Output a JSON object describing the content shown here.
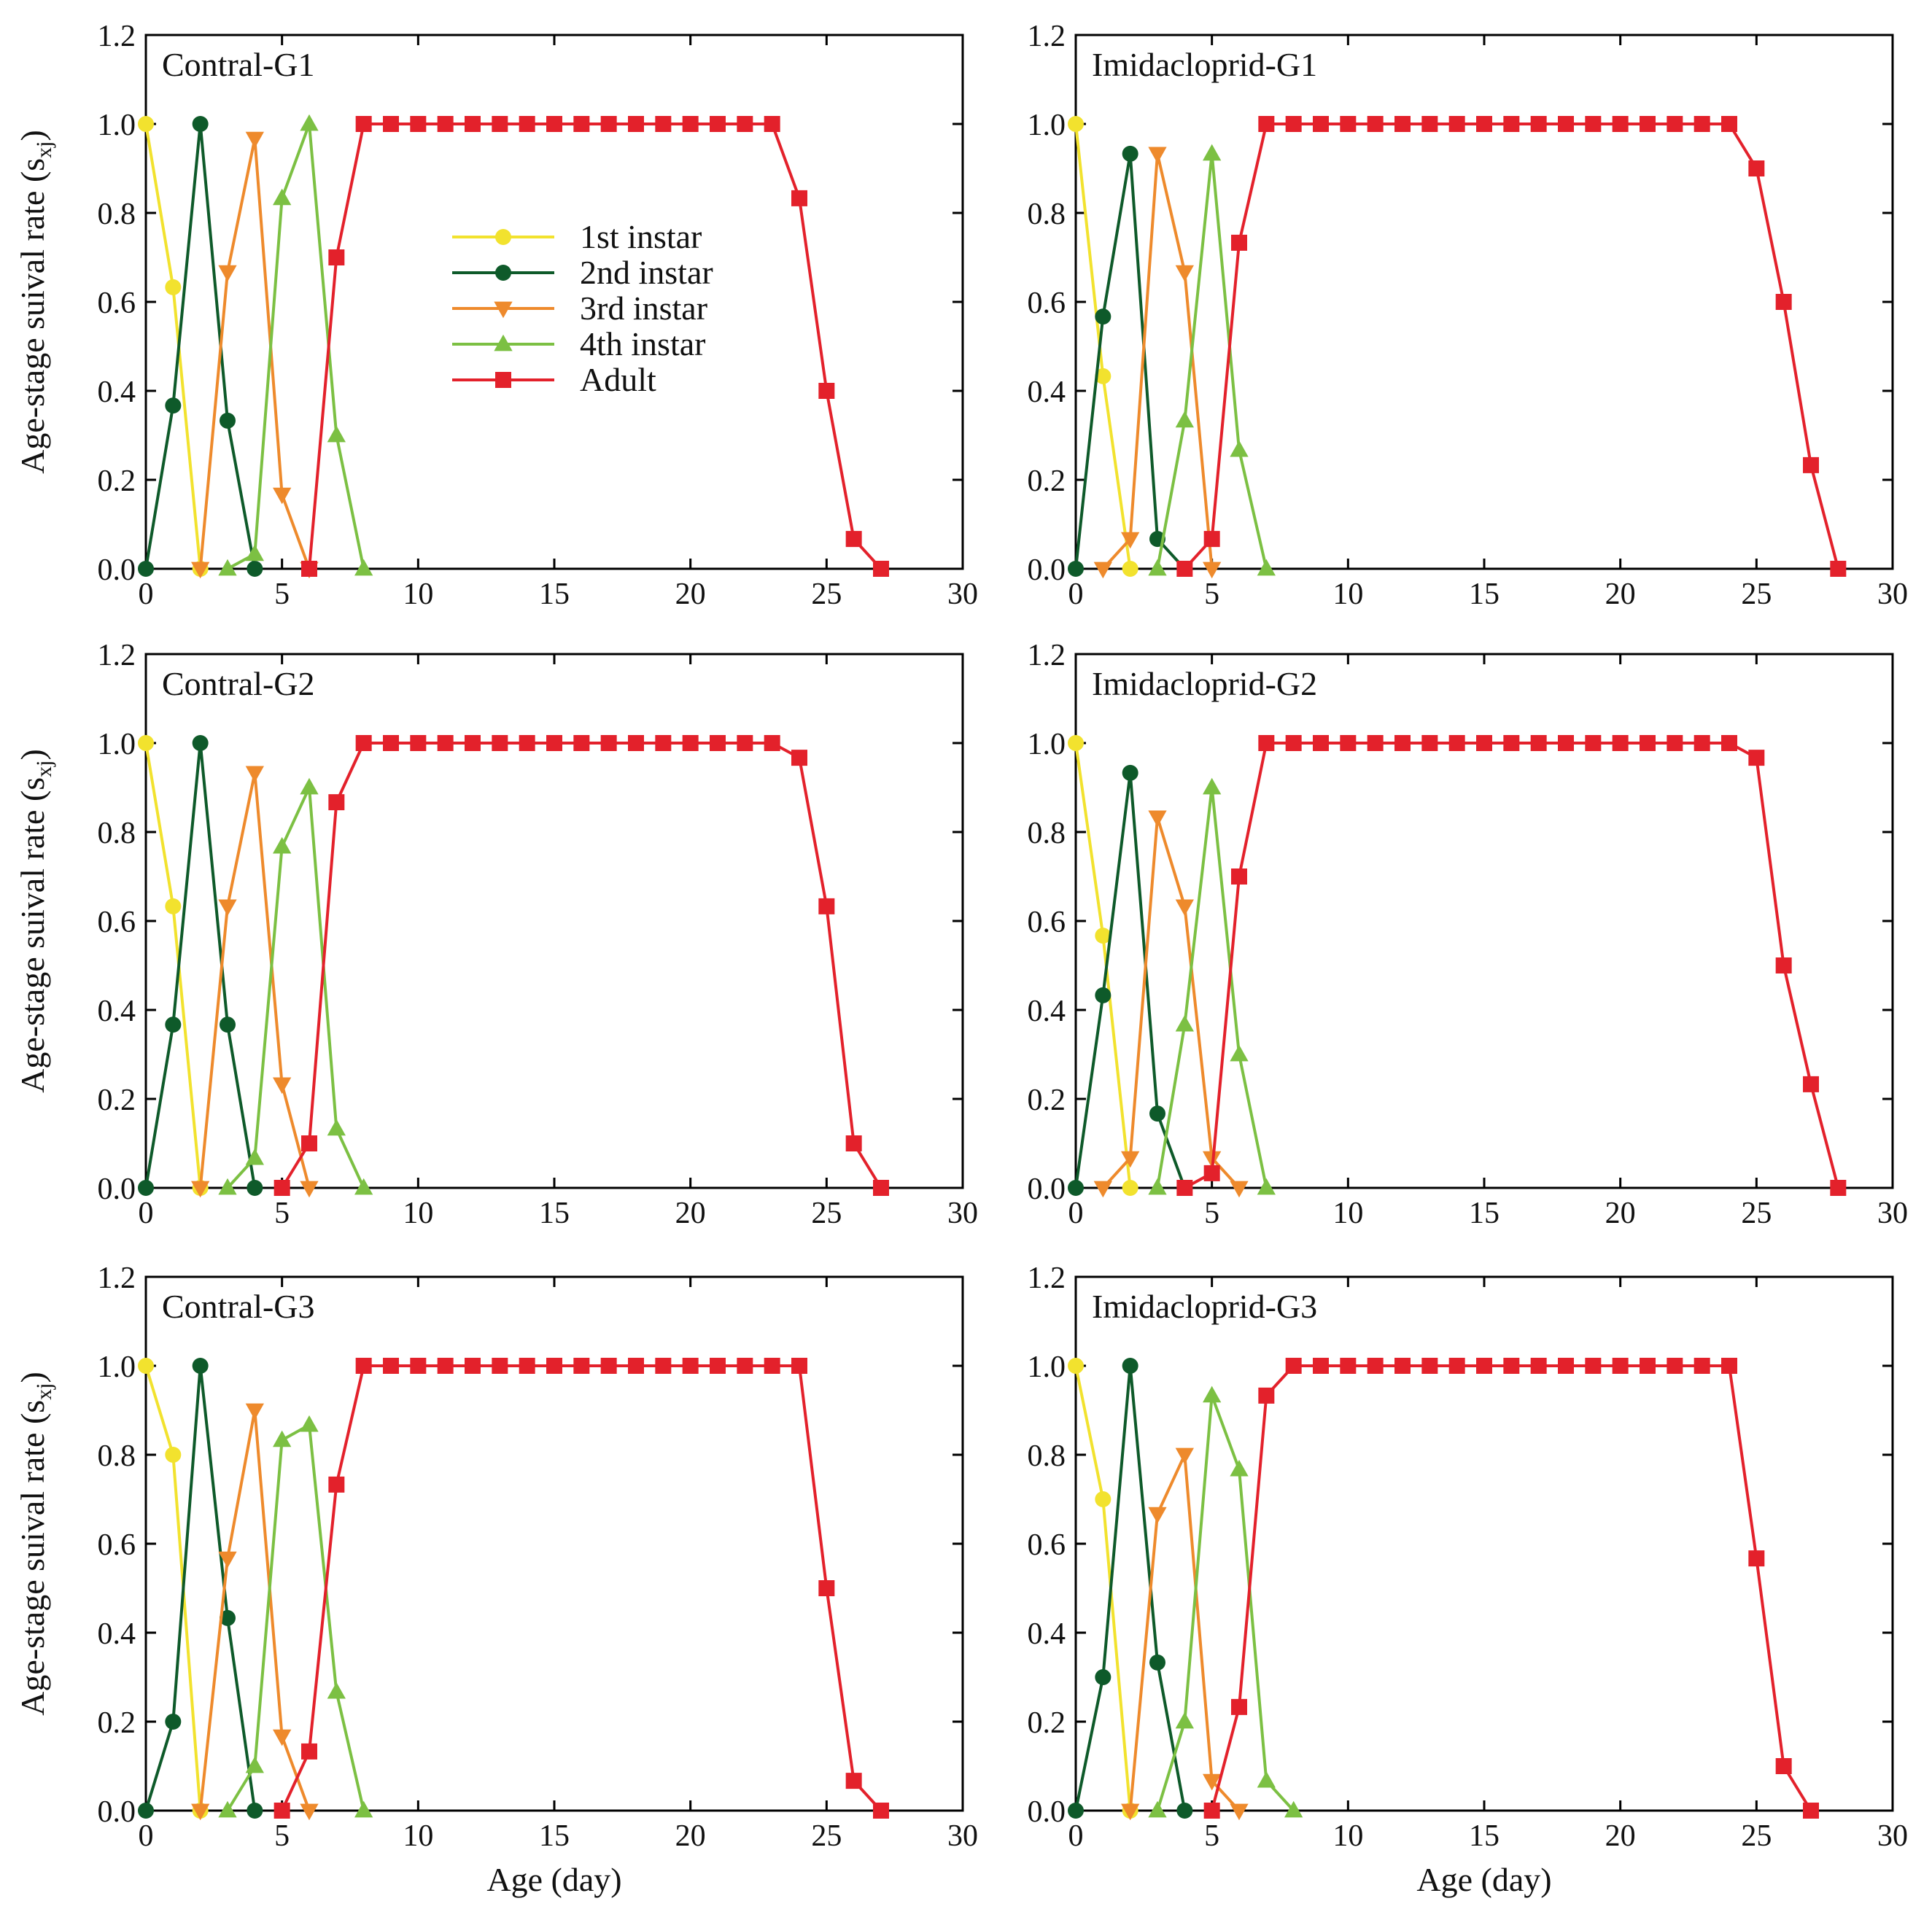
{
  "figure": {
    "ylabel_prefix": "Age-stage suival rate (s",
    "ylabel_sub": "xj",
    "ylabel_suffix": ")",
    "xlabel": "Age (day)"
  },
  "legend": [
    {
      "name": "1st instar",
      "color": "#f2e22e",
      "marker": "circle"
    },
    {
      "name": "2nd instar",
      "color": "#0e5a2a",
      "marker": "circle"
    },
    {
      "name": "3rd instar",
      "color": "#ee8a2c",
      "marker": "triangle-down"
    },
    {
      "name": "4th instar",
      "color": "#7cc043",
      "marker": "triangle-up"
    },
    {
      "name": "Adult",
      "color": "#e3212b",
      "marker": "square"
    }
  ],
  "chart_data": [
    {
      "type": "line",
      "title": "Contral-G1",
      "xlabel": "",
      "ylabel": "Age-stage suival rate (sxj)",
      "xlim": [
        0,
        30
      ],
      "ylim": [
        0,
        1.2
      ],
      "xticks": [
        0,
        5,
        10,
        15,
        20,
        25,
        30
      ],
      "yticks": [
        0.0,
        0.2,
        0.4,
        0.6,
        0.8,
        1.0,
        1.2
      ],
      "show_legend": true,
      "series": [
        {
          "name": "1st instar",
          "x": [
            0,
            1,
            2
          ],
          "y": [
            1.0,
            0.633,
            0.0
          ]
        },
        {
          "name": "2nd instar",
          "x": [
            0,
            1,
            2,
            3,
            4
          ],
          "y": [
            0.0,
            0.367,
            1.0,
            0.333,
            0.0
          ]
        },
        {
          "name": "3rd instar",
          "x": [
            2,
            3,
            4,
            5,
            6
          ],
          "y": [
            0.0,
            0.667,
            0.967,
            0.167,
            0.0
          ]
        },
        {
          "name": "4th instar",
          "x": [
            3,
            4,
            5,
            6,
            7,
            8
          ],
          "y": [
            0.0,
            0.033,
            0.833,
            1.0,
            0.3,
            0.0
          ]
        },
        {
          "name": "Adult",
          "x": [
            6,
            7,
            8,
            9,
            10,
            11,
            12,
            13,
            14,
            15,
            16,
            17,
            18,
            19,
            20,
            21,
            22,
            23,
            24,
            25,
            26,
            27
          ],
          "y": [
            0.0,
            0.7,
            1,
            1,
            1,
            1,
            1,
            1,
            1,
            1,
            1,
            1,
            1,
            1,
            1,
            1,
            1,
            1,
            0.833,
            0.4,
            0.067,
            0.0
          ]
        }
      ]
    },
    {
      "type": "line",
      "title": "Imidacloprid-G1",
      "xlabel": "",
      "ylabel": "",
      "xlim": [
        0,
        30
      ],
      "ylim": [
        0,
        1.2
      ],
      "xticks": [
        0,
        5,
        10,
        15,
        20,
        25,
        30
      ],
      "yticks": [
        0.0,
        0.2,
        0.4,
        0.6,
        0.8,
        1.0,
        1.2
      ],
      "show_legend": false,
      "series": [
        {
          "name": "1st instar",
          "x": [
            0,
            1,
            2
          ],
          "y": [
            1.0,
            0.433,
            0.0
          ]
        },
        {
          "name": "2nd instar",
          "x": [
            0,
            1,
            2,
            3,
            4
          ],
          "y": [
            0.0,
            0.567,
            0.933,
            0.067,
            0.0
          ]
        },
        {
          "name": "3rd instar",
          "x": [
            1,
            2,
            3,
            4,
            5
          ],
          "y": [
            0.0,
            0.067,
            0.933,
            0.667,
            0.0
          ]
        },
        {
          "name": "4th instar",
          "x": [
            3,
            4,
            5,
            6,
            7
          ],
          "y": [
            0.0,
            0.333,
            0.933,
            0.267,
            0.0
          ]
        },
        {
          "name": "Adult",
          "x": [
            4,
            5,
            6,
            7,
            8,
            9,
            10,
            11,
            12,
            13,
            14,
            15,
            16,
            17,
            18,
            19,
            20,
            21,
            22,
            23,
            24,
            25,
            26,
            27,
            28
          ],
          "y": [
            0.0,
            0.067,
            0.733,
            1,
            1,
            1,
            1,
            1,
            1,
            1,
            1,
            1,
            1,
            1,
            1,
            1,
            1,
            1,
            1,
            1,
            1,
            0.9,
            0.6,
            0.233,
            0.0
          ]
        }
      ]
    },
    {
      "type": "line",
      "title": "Contral-G2",
      "xlabel": "",
      "ylabel": "Age-stage suival rate (sxj)",
      "xlim": [
        0,
        30
      ],
      "ylim": [
        0,
        1.2
      ],
      "xticks": [
        0,
        5,
        10,
        15,
        20,
        25,
        30
      ],
      "yticks": [
        0.0,
        0.2,
        0.4,
        0.6,
        0.8,
        1.0,
        1.2
      ],
      "show_legend": false,
      "series": [
        {
          "name": "1st instar",
          "x": [
            0,
            1,
            2
          ],
          "y": [
            1.0,
            0.633,
            0.0
          ]
        },
        {
          "name": "2nd instar",
          "x": [
            0,
            1,
            2,
            3,
            4
          ],
          "y": [
            0.0,
            0.367,
            1.0,
            0.367,
            0.0
          ]
        },
        {
          "name": "3rd instar",
          "x": [
            2,
            3,
            4,
            5,
            6
          ],
          "y": [
            0.0,
            0.633,
            0.933,
            0.233,
            0.0
          ]
        },
        {
          "name": "4th instar",
          "x": [
            3,
            4,
            5,
            6,
            7,
            8
          ],
          "y": [
            0.0,
            0.067,
            0.767,
            0.9,
            0.133,
            0.0
          ]
        },
        {
          "name": "Adult",
          "x": [
            5,
            6,
            7,
            8,
            9,
            10,
            11,
            12,
            13,
            14,
            15,
            16,
            17,
            18,
            19,
            20,
            21,
            22,
            23,
            24,
            25,
            26,
            27
          ],
          "y": [
            0.0,
            0.1,
            0.867,
            1,
            1,
            1,
            1,
            1,
            1,
            1,
            1,
            1,
            1,
            1,
            1,
            1,
            1,
            1,
            1,
            0.967,
            0.633,
            0.1,
            0.0
          ]
        }
      ]
    },
    {
      "type": "line",
      "title": "Imidacloprid-G2",
      "xlabel": "",
      "ylabel": "",
      "xlim": [
        0,
        30
      ],
      "ylim": [
        0,
        1.2
      ],
      "xticks": [
        0,
        5,
        10,
        15,
        20,
        25,
        30
      ],
      "yticks": [
        0.0,
        0.2,
        0.4,
        0.6,
        0.8,
        1.0,
        1.2
      ],
      "show_legend": false,
      "series": [
        {
          "name": "1st instar",
          "x": [
            0,
            1,
            2
          ],
          "y": [
            1.0,
            0.567,
            0.0
          ]
        },
        {
          "name": "2nd instar",
          "x": [
            0,
            1,
            2,
            3,
            4
          ],
          "y": [
            0.0,
            0.433,
            0.933,
            0.167,
            0.0
          ]
        },
        {
          "name": "3rd instar",
          "x": [
            1,
            2,
            3,
            4,
            5,
            6
          ],
          "y": [
            0.0,
            0.067,
            0.833,
            0.633,
            0.067,
            0.0
          ]
        },
        {
          "name": "4th instar",
          "x": [
            3,
            4,
            5,
            6,
            7
          ],
          "y": [
            0.0,
            0.367,
            0.9,
            0.3,
            0.0
          ]
        },
        {
          "name": "Adult",
          "x": [
            4,
            5,
            6,
            7,
            8,
            9,
            10,
            11,
            12,
            13,
            14,
            15,
            16,
            17,
            18,
            19,
            20,
            21,
            22,
            23,
            24,
            25,
            26,
            27,
            28
          ],
          "y": [
            0.0,
            0.033,
            0.7,
            1,
            1,
            1,
            1,
            1,
            1,
            1,
            1,
            1,
            1,
            1,
            1,
            1,
            1,
            1,
            1,
            1,
            1,
            0.967,
            0.5,
            0.233,
            0.0
          ]
        }
      ]
    },
    {
      "type": "line",
      "title": "Contral-G3",
      "xlabel": "Age (day)",
      "ylabel": "Age-stage suival rate (sxj)",
      "xlim": [
        0,
        30
      ],
      "ylim": [
        0,
        1.2
      ],
      "xticks": [
        0,
        5,
        10,
        15,
        20,
        25,
        30
      ],
      "yticks": [
        0.0,
        0.2,
        0.4,
        0.6,
        0.8,
        1.0,
        1.2
      ],
      "show_legend": false,
      "series": [
        {
          "name": "1st instar",
          "x": [
            0,
            1,
            2
          ],
          "y": [
            1.0,
            0.8,
            0.0
          ]
        },
        {
          "name": "2nd instar",
          "x": [
            0,
            1,
            2,
            3,
            4
          ],
          "y": [
            0.0,
            0.2,
            1.0,
            0.433,
            0.0
          ]
        },
        {
          "name": "3rd instar",
          "x": [
            2,
            3,
            4,
            5,
            6
          ],
          "y": [
            0.0,
            0.567,
            0.9,
            0.167,
            0.0
          ]
        },
        {
          "name": "4th instar",
          "x": [
            3,
            4,
            5,
            6,
            7,
            8
          ],
          "y": [
            0.0,
            0.1,
            0.833,
            0.867,
            0.267,
            0.0
          ]
        },
        {
          "name": "Adult",
          "x": [
            5,
            6,
            7,
            8,
            9,
            10,
            11,
            12,
            13,
            14,
            15,
            16,
            17,
            18,
            19,
            20,
            21,
            22,
            23,
            24,
            25,
            26,
            27
          ],
          "y": [
            0.0,
            0.133,
            0.733,
            1,
            1,
            1,
            1,
            1,
            1,
            1,
            1,
            1,
            1,
            1,
            1,
            1,
            1,
            1,
            1,
            1,
            0.5,
            0.067,
            0.0
          ]
        }
      ]
    },
    {
      "type": "line",
      "title": "Imidacloprid-G3",
      "xlabel": "Age (day)",
      "ylabel": "",
      "xlim": [
        0,
        30
      ],
      "ylim": [
        0,
        1.2
      ],
      "xticks": [
        0,
        5,
        10,
        15,
        20,
        25,
        30
      ],
      "yticks": [
        0.0,
        0.2,
        0.4,
        0.6,
        0.8,
        1.0,
        1.2
      ],
      "show_legend": false,
      "series": [
        {
          "name": "1st instar",
          "x": [
            0,
            1,
            2
          ],
          "y": [
            1.0,
            0.7,
            0.0
          ]
        },
        {
          "name": "2nd instar",
          "x": [
            0,
            1,
            2,
            3,
            4
          ],
          "y": [
            0.0,
            0.3,
            1.0,
            0.333,
            0.0
          ]
        },
        {
          "name": "3rd instar",
          "x": [
            2,
            3,
            4,
            5,
            6
          ],
          "y": [
            0.0,
            0.667,
            0.8,
            0.067,
            0.0
          ]
        },
        {
          "name": "4th instar",
          "x": [
            3,
            4,
            5,
            6,
            7,
            8
          ],
          "y": [
            0.0,
            0.2,
            0.933,
            0.767,
            0.067,
            0.0
          ]
        },
        {
          "name": "Adult",
          "x": [
            5,
            6,
            7,
            8,
            9,
            10,
            11,
            12,
            13,
            14,
            15,
            16,
            17,
            18,
            19,
            20,
            21,
            22,
            23,
            24,
            25,
            26,
            27
          ],
          "y": [
            0.0,
            0.233,
            0.933,
            1,
            1,
            1,
            1,
            1,
            1,
            1,
            1,
            1,
            1,
            1,
            1,
            1,
            1,
            1,
            1,
            1,
            0.567,
            0.1,
            0.0
          ]
        }
      ]
    }
  ]
}
